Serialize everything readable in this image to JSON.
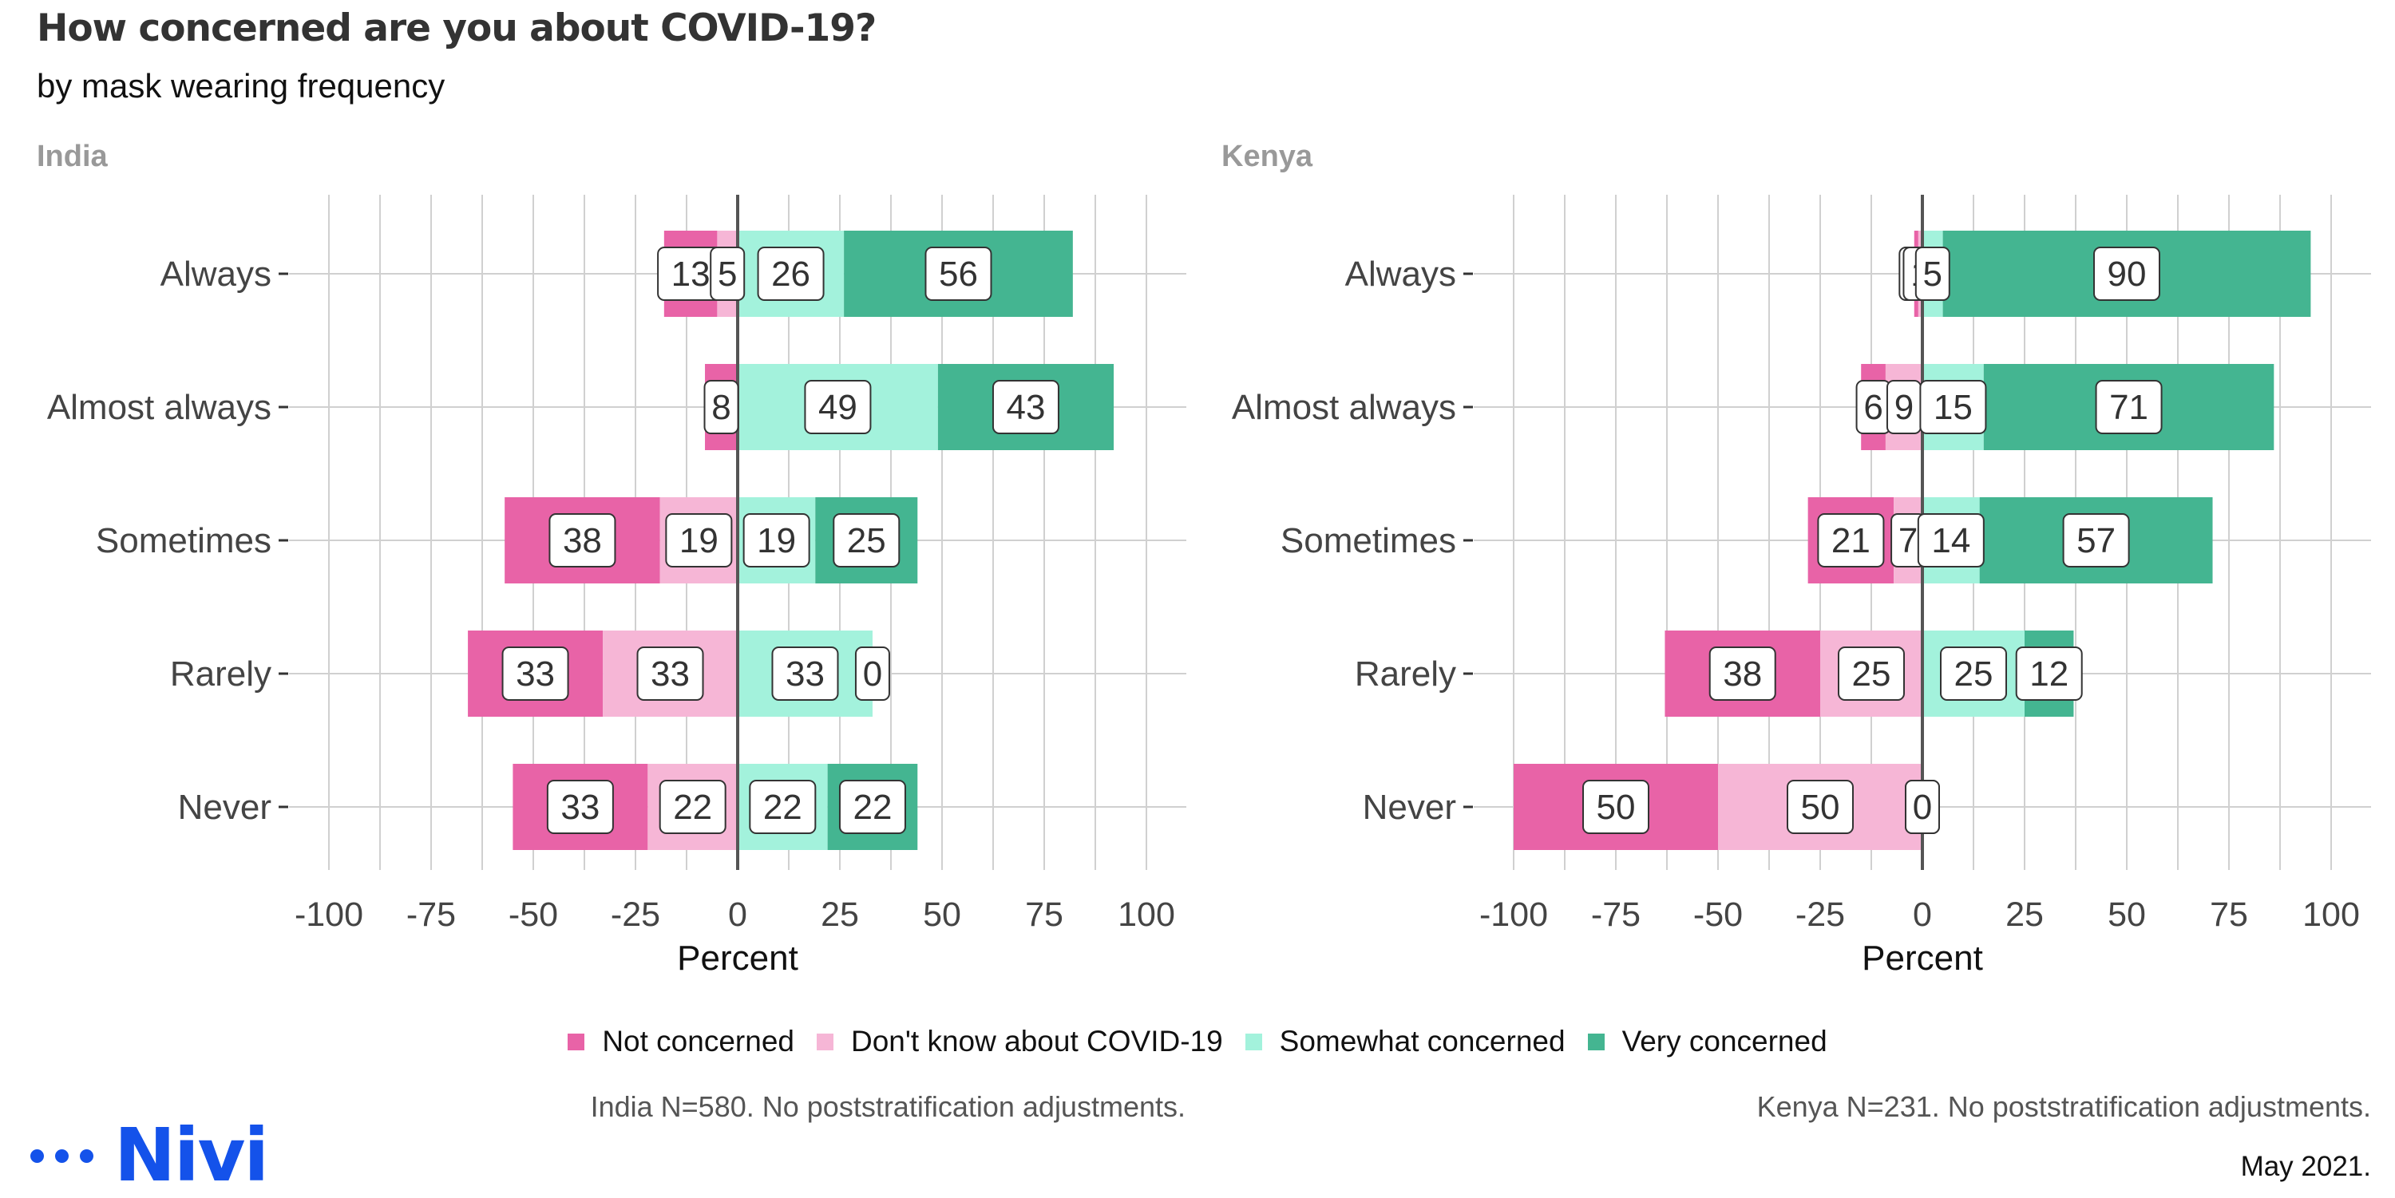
{
  "title": "How concerned are you about COVID-19?",
  "subtitle": "by mask wearing frequency",
  "legend": {
    "items": [
      {
        "label": "Not concerned",
        "color": "#e863a7"
      },
      {
        "label": "Don't know about COVID-19",
        "color": "#f6b6d6"
      },
      {
        "label": "Somewhat concerned",
        "color": "#a3f2dc"
      },
      {
        "label": "Very concerned",
        "color": "#44b591"
      }
    ]
  },
  "notes": {
    "india": "India N=580. No poststratification adjustments.",
    "kenya": "Kenya N=231. No poststratification adjustments.",
    "date": "May 2021."
  },
  "logo": {
    "text": "Nivi"
  },
  "chart_data": [
    {
      "type": "bar",
      "orientation": "horizontal-diverging",
      "facet": "India",
      "categories": [
        "Always",
        "Almost always",
        "Sometimes",
        "Rarely",
        "Never"
      ],
      "series": [
        {
          "name": "Not concerned",
          "values": [
            13,
            8,
            38,
            33,
            33
          ]
        },
        {
          "name": "Don't know about COVID-19",
          "values": [
            5,
            0,
            19,
            33,
            22
          ]
        },
        {
          "name": "Somewhat concerned",
          "values": [
            26,
            49,
            19,
            33,
            22
          ]
        },
        {
          "name": "Very concerned",
          "values": [
            56,
            43,
            25,
            0,
            22
          ]
        }
      ],
      "xlabel": "Percent",
      "xlim": [
        -100,
        100
      ],
      "xticks": [
        -100,
        -75,
        -50,
        -25,
        0,
        25,
        50,
        75,
        100
      ],
      "xtick_labels": [
        "-100",
        "-75",
        "-50",
        "-25",
        "0",
        "25",
        "50",
        "75",
        "100"
      ],
      "grid": true
    },
    {
      "type": "bar",
      "orientation": "horizontal-diverging",
      "facet": "Kenya",
      "categories": [
        "Always",
        "Almost always",
        "Sometimes",
        "Rarely",
        "Never"
      ],
      "series": [
        {
          "name": "Not concerned",
          "values": [
            1,
            6,
            21,
            38,
            50
          ]
        },
        {
          "name": "Don't know about COVID-19",
          "values": [
            1,
            9,
            7,
            25,
            50
          ]
        },
        {
          "name": "Somewhat concerned",
          "values": [
            5,
            15,
            14,
            25,
            0
          ]
        },
        {
          "name": "Very concerned",
          "values": [
            90,
            71,
            57,
            12,
            0
          ]
        }
      ],
      "xlabel": "Percent",
      "xlim": [
        -100,
        100
      ],
      "xticks": [
        -100,
        -75,
        -50,
        -25,
        0,
        25,
        50,
        75,
        100
      ],
      "xtick_labels": [
        "-100",
        "-75",
        "-50",
        "-25",
        "0",
        "25",
        "50",
        "75",
        "100"
      ],
      "grid": true
    }
  ]
}
